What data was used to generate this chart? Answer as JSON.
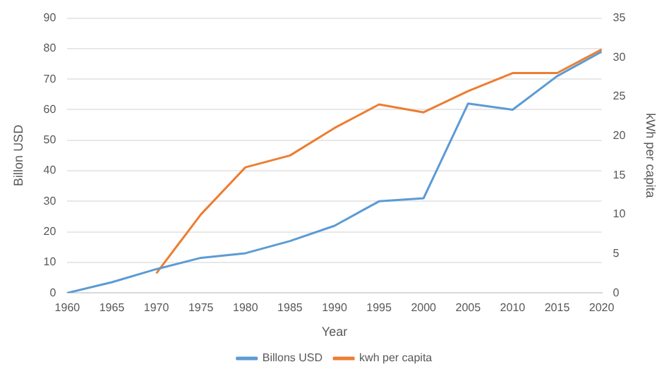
{
  "chart_data": {
    "type": "line",
    "xlabel": "Year",
    "ylabel": "Billon USD",
    "y2label": "kWh per capita",
    "categories": [
      "1960",
      "1965",
      "1970",
      "1975",
      "1980",
      "1985",
      "1990",
      "1995",
      "2000",
      "2005",
      "2010",
      "2015",
      "2020"
    ],
    "series": [
      {
        "name": "Billons USD",
        "color": "#5b9bd5",
        "values": [
          0,
          3.5,
          7.8,
          11.5,
          13,
          17,
          22,
          30,
          31,
          62,
          60,
          71,
          79
        ]
      },
      {
        "name": "kwh per capita",
        "color": "#ed7d31",
        "axis": "y2",
        "values": [
          null,
          null,
          2.5,
          10,
          16,
          17.5,
          21,
          24,
          23,
          25.7,
          28,
          28,
          31
        ]
      }
    ],
    "ylim": [
      0,
      90
    ],
    "yticks": [
      0,
      10,
      20,
      30,
      40,
      50,
      60,
      70,
      80,
      90
    ],
    "y2lim": [
      0,
      35
    ],
    "y2ticks": [
      0,
      5,
      10,
      15,
      20,
      25,
      30,
      35
    ],
    "grid": "y",
    "legend": "bottom",
    "marker": "none",
    "line_style": "solid"
  }
}
